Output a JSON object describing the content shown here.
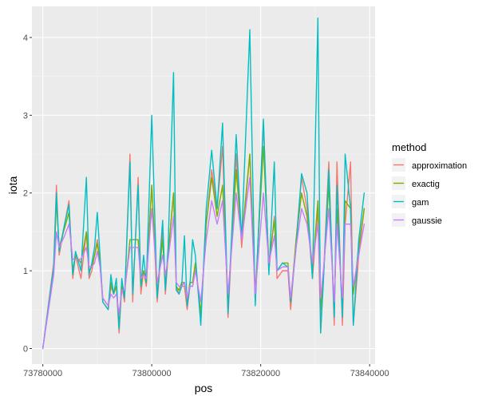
{
  "chart_data": {
    "type": "line",
    "xlabel": "pos",
    "ylabel": "iota",
    "xlim": [
      73778000,
      73841000
    ],
    "ylim": [
      -0.2,
      4.4
    ],
    "x_ticks": [
      73780000,
      73800000,
      73820000,
      73840000
    ],
    "x_tick_labels": [
      "73780000",
      "73800000",
      "73820000",
      "73840000"
    ],
    "y_ticks": [
      0,
      1,
      2,
      3,
      4
    ],
    "y_tick_labels": [
      "0",
      "1",
      "2",
      "3",
      "4"
    ],
    "grid": true,
    "legend": {
      "title": "method",
      "position": "right"
    },
    "x": [
      73780000,
      73782000,
      73782500,
      73783000,
      73784000,
      73784800,
      73785500,
      73786000,
      73787000,
      73788000,
      73788500,
      73789000,
      73789500,
      73790000,
      73790500,
      73791000,
      73792000,
      73792500,
      73793000,
      73793500,
      73794000,
      73794500,
      73795000,
      73796000,
      73796500,
      73797500,
      73798000,
      73798500,
      73799000,
      73800000,
      73801000,
      73802000,
      73802500,
      73803000,
      73804000,
      73804500,
      73805000,
      73805500,
      73806000,
      73806500,
      73807000,
      73807500,
      73808000,
      73809000,
      73810000,
      73811000,
      73812000,
      73813000,
      73814000,
      73815500,
      73816500,
      73818000,
      73819000,
      73820500,
      73821500,
      73822500,
      73823000,
      73824000,
      73825000,
      73825500,
      73826500,
      73827500,
      73828500,
      73829500,
      73830500,
      73831000,
      73831500,
      73832500,
      73833500,
      73834000,
      73835000,
      73835500,
      73836500,
      73837000,
      73838000,
      73839000
    ],
    "series": [
      {
        "name": "approximation",
        "color": "#F8766D",
        "values": [
          0.0,
          1.1,
          2.1,
          1.2,
          1.6,
          1.9,
          0.9,
          1.2,
          0.9,
          1.5,
          0.9,
          1.0,
          1.2,
          1.4,
          1.1,
          0.6,
          0.5,
          0.8,
          0.7,
          0.8,
          0.2,
          0.8,
          0.6,
          2.5,
          0.6,
          2.2,
          0.7,
          1.0,
          0.8,
          2.1,
          0.6,
          1.5,
          0.7,
          1.2,
          2.0,
          0.8,
          0.7,
          0.8,
          0.8,
          0.5,
          0.8,
          0.8,
          1.1,
          0.4,
          1.6,
          2.3,
          1.8,
          2.6,
          0.4,
          2.5,
          1.3,
          2.5,
          0.6,
          2.9,
          1.0,
          1.7,
          0.9,
          1.0,
          1.0,
          0.5,
          1.4,
          2.2,
          1.8,
          0.9,
          1.8,
          0.2,
          0.9,
          2.4,
          0.3,
          2.4,
          0.3,
          1.6,
          2.4,
          0.3,
          1.2,
          1.8
        ]
      },
      {
        "name": "exactig",
        "color": "#7CAE00",
        "values": [
          0.0,
          1.0,
          1.9,
          1.3,
          1.55,
          1.75,
          1.0,
          1.2,
          1.1,
          1.5,
          1.0,
          1.05,
          1.2,
          1.35,
          1.1,
          0.65,
          0.55,
          0.85,
          0.7,
          0.8,
          0.3,
          0.8,
          0.7,
          1.4,
          1.4,
          1.4,
          0.8,
          1.0,
          0.85,
          2.1,
          0.7,
          1.4,
          0.8,
          1.2,
          2.0,
          0.8,
          0.75,
          0.85,
          0.85,
          0.6,
          0.85,
          0.85,
          1.1,
          0.45,
          1.6,
          2.2,
          1.7,
          2.1,
          0.6,
          2.3,
          1.4,
          2.5,
          0.7,
          2.6,
          1.1,
          1.65,
          1.0,
          1.1,
          1.1,
          0.6,
          1.4,
          2.0,
          1.7,
          1.0,
          1.9,
          0.5,
          0.9,
          2.1,
          0.5,
          1.8,
          0.5,
          1.9,
          1.8,
          0.7,
          1.3,
          1.8
        ]
      },
      {
        "name": "gam",
        "color": "#00BFC4",
        "values": [
          0.0,
          1.05,
          2.0,
          1.25,
          1.6,
          1.85,
          0.95,
          1.25,
          1.0,
          2.2,
          0.95,
          1.1,
          1.3,
          1.75,
          1.2,
          0.6,
          0.5,
          0.95,
          0.7,
          0.9,
          0.25,
          0.9,
          0.65,
          2.4,
          0.7,
          2.1,
          0.8,
          1.2,
          0.85,
          3.0,
          0.65,
          1.65,
          0.75,
          1.3,
          3.55,
          0.75,
          0.7,
          0.8,
          1.45,
          0.55,
          0.8,
          1.4,
          1.2,
          0.3,
          1.8,
          2.55,
          1.8,
          2.9,
          0.45,
          2.75,
          1.4,
          4.1,
          0.55,
          2.95,
          0.95,
          2.4,
          1.0,
          1.1,
          1.05,
          0.6,
          1.3,
          2.25,
          2.0,
          0.9,
          4.25,
          0.2,
          0.85,
          2.3,
          0.4,
          2.1,
          0.4,
          2.5,
          1.8,
          0.3,
          1.4,
          2.0
        ]
      },
      {
        "name": "gaussie",
        "color": "#C77CFF",
        "values": [
          0.0,
          0.95,
          1.5,
          1.3,
          1.45,
          1.6,
          1.15,
          1.15,
          1.15,
          1.3,
          1.05,
          1.05,
          1.1,
          1.25,
          1.05,
          0.65,
          0.55,
          0.7,
          0.65,
          0.7,
          0.45,
          0.75,
          0.75,
          1.3,
          1.3,
          1.3,
          0.9,
          0.95,
          0.9,
          1.8,
          0.85,
          1.2,
          0.95,
          1.15,
          1.7,
          0.85,
          0.8,
          0.8,
          0.85,
          0.65,
          0.8,
          0.8,
          1.0,
          0.6,
          1.4,
          1.9,
          1.6,
          1.9,
          0.7,
          2.0,
          1.4,
          2.2,
          0.7,
          2.0,
          1.1,
          1.45,
          1.0,
          1.05,
          1.05,
          0.65,
          1.3,
          1.8,
          1.6,
          1.1,
          1.6,
          0.65,
          1.0,
          1.8,
          0.6,
          1.6,
          0.65,
          1.6,
          1.6,
          0.8,
          1.2,
          1.6
        ]
      }
    ]
  }
}
